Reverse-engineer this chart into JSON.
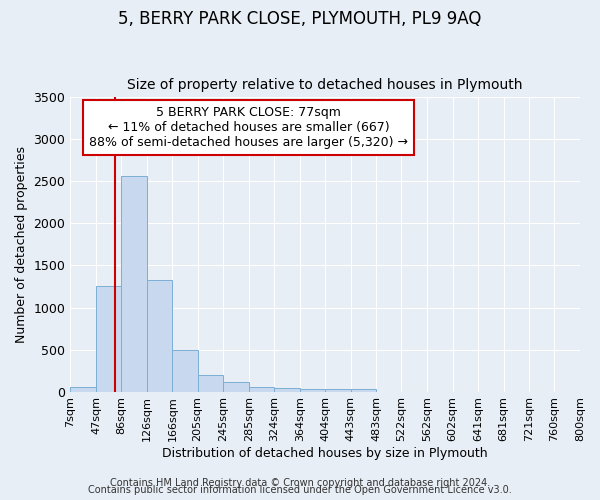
{
  "title": "5, BERRY PARK CLOSE, PLYMOUTH, PL9 9AQ",
  "subtitle": "Size of property relative to detached houses in Plymouth",
  "xlabel": "Distribution of detached houses by size in Plymouth",
  "ylabel": "Number of detached properties",
  "bin_edges": [
    7,
    47,
    86,
    126,
    166,
    205,
    245,
    285,
    324,
    364,
    404,
    443,
    483,
    522,
    562,
    602,
    641,
    681,
    721,
    760,
    800
  ],
  "bar_heights": [
    50,
    1250,
    2570,
    1330,
    490,
    195,
    110,
    50,
    45,
    30,
    30,
    30,
    0,
    0,
    0,
    0,
    0,
    0,
    0,
    0
  ],
  "bar_color": "#c8d8ee",
  "bar_edge_color": "#7bafd4",
  "red_line_x": 77,
  "red_line_color": "#cc0000",
  "ylim": [
    0,
    3500
  ],
  "yticks": [
    0,
    500,
    1000,
    1500,
    2000,
    2500,
    3000,
    3500
  ],
  "xtick_labels": [
    "7sqm",
    "47sqm",
    "86sqm",
    "126sqm",
    "166sqm",
    "205sqm",
    "245sqm",
    "285sqm",
    "324sqm",
    "364sqm",
    "404sqm",
    "443sqm",
    "483sqm",
    "522sqm",
    "562sqm",
    "602sqm",
    "641sqm",
    "681sqm",
    "721sqm",
    "760sqm",
    "800sqm"
  ],
  "annotation_line1": "5 BERRY PARK CLOSE: 77sqm",
  "annotation_line2": "← 11% of detached houses are smaller (667)",
  "annotation_line3": "88% of semi-detached houses are larger (5,320) →",
  "annotation_box_color": "#ffffff",
  "annotation_border_color": "#cc0000",
  "background_color": "#e8eef5",
  "grid_color": "#ffffff",
  "footer_line1": "Contains HM Land Registry data © Crown copyright and database right 2024.",
  "footer_line2": "Contains public sector information licensed under the Open Government Licence v3.0.",
  "title_fontsize": 12,
  "subtitle_fontsize": 10,
  "ylabel_fontsize": 9,
  "xlabel_fontsize": 9,
  "ytick_fontsize": 9,
  "xtick_fontsize": 8,
  "ann_fontsize": 9,
  "footer_fontsize": 7
}
